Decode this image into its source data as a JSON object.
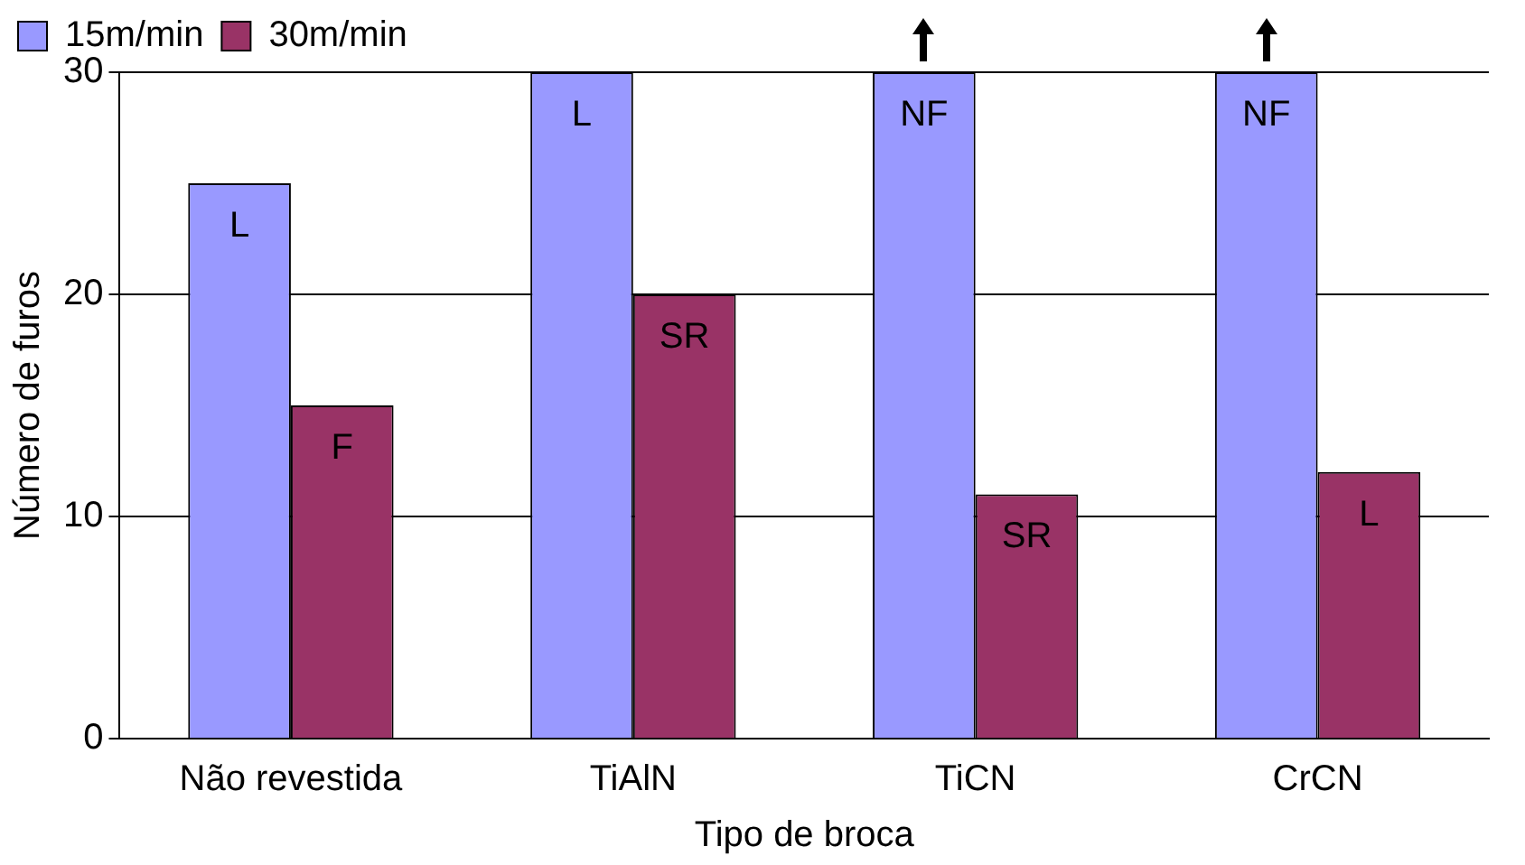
{
  "chart_data": {
    "type": "bar",
    "xlabel": "Tipo de broca",
    "ylabel": "Número de furos",
    "categories": [
      "Não revestida",
      "TiAlN",
      "TiCN",
      "CrCN"
    ],
    "series": [
      {
        "name": "15m/min",
        "color": "#9999ff",
        "values": [
          25,
          30,
          30,
          30
        ],
        "value_labels": [
          "L",
          "L",
          "NF",
          "NF"
        ]
      },
      {
        "name": "30m/min",
        "color": "#993366",
        "values": [
          15,
          20,
          11,
          12
        ],
        "value_labels": [
          "F",
          "SR",
          "SR",
          "L"
        ]
      }
    ],
    "ylim": [
      0,
      30
    ],
    "yticks": [
      0,
      10,
      20,
      30
    ],
    "grid": "y",
    "legend": "top left"
  }
}
